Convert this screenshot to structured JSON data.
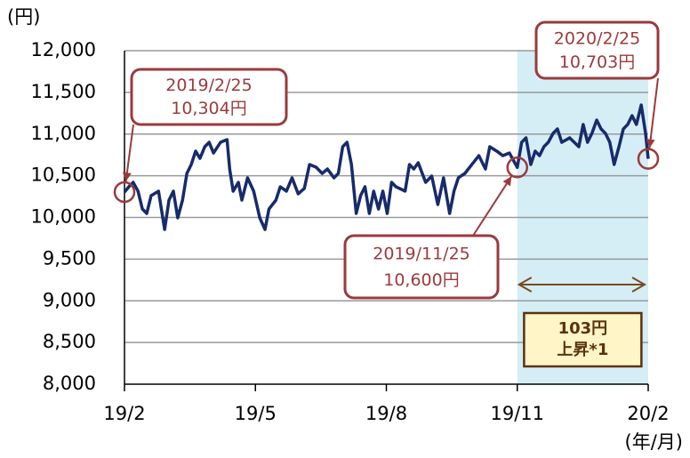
{
  "chart_data": {
    "type": "line",
    "y_unit": "(円)",
    "x_unit": "(年/月)",
    "xlim": [
      0,
      12
    ],
    "xticks": [
      {
        "value": 0,
        "label": "19/2"
      },
      {
        "value": 3,
        "label": "19/5"
      },
      {
        "value": 6,
        "label": "19/8"
      },
      {
        "value": 9,
        "label": "19/11"
      },
      {
        "value": 12,
        "label": "20/2"
      }
    ],
    "ylim": [
      8000,
      12000
    ],
    "yticks": [
      {
        "value": 8000,
        "label": "8,000"
      },
      {
        "value": 8500,
        "label": "8,500"
      },
      {
        "value": 9000,
        "label": "9,000"
      },
      {
        "value": 9500,
        "label": "9,500"
      },
      {
        "value": 10000,
        "label": "10,000"
      },
      {
        "value": 10500,
        "label": "10,500"
      },
      {
        "value": 11000,
        "label": "11,000"
      },
      {
        "value": 11500,
        "label": "11,500"
      },
      {
        "value": 12000,
        "label": "12,000"
      }
    ],
    "grid": true,
    "series": [
      {
        "color": "#172b6b",
        "x": [
          0,
          0.1,
          0.2,
          0.31,
          0.41,
          0.51,
          0.61,
          0.78,
          0.92,
          1.02,
          1.12,
          1.22,
          1.33,
          1.43,
          1.53,
          1.63,
          1.73,
          1.84,
          1.94,
          2.04,
          2.2,
          2.35,
          2.41,
          2.49,
          2.61,
          2.69,
          2.82,
          2.96,
          3.1,
          3.22,
          3.31,
          3.47,
          3.57,
          3.71,
          3.84,
          3.98,
          4.12,
          4.24,
          4.39,
          4.53,
          4.65,
          4.8,
          4.9,
          5,
          5.1,
          5.2,
          5.31,
          5.41,
          5.51,
          5.61,
          5.71,
          5.82,
          5.92,
          6.02,
          6.12,
          6.22,
          6.43,
          6.53,
          6.63,
          6.73,
          6.9,
          7.04,
          7.18,
          7.31,
          7.45,
          7.55,
          7.65,
          7.8,
          7.96,
          8.12,
          8.27,
          8.37,
          8.53,
          8.67,
          8.82,
          9,
          9.1,
          9.2,
          9.31,
          9.41,
          9.51,
          9.61,
          9.71,
          9.82,
          9.92,
          10.02,
          10.2,
          10.41,
          10.51,
          10.61,
          10.71,
          10.82,
          10.92,
          11.02,
          11.12,
          11.22,
          11.33,
          11.43,
          11.53,
          11.63,
          11.73,
          11.84,
          11.94,
          12
        ],
        "values": [
          10304,
          10368,
          10421,
          10315,
          10101,
          10048,
          10261,
          10315,
          9856,
          10208,
          10315,
          9995,
          10208,
          10528,
          10635,
          10795,
          10709,
          10848,
          10901,
          10773,
          10901,
          10933,
          10581,
          10315,
          10421,
          10208,
          10475,
          10315,
          9995,
          9856,
          10101,
          10208,
          10368,
          10315,
          10475,
          10283,
          10347,
          10635,
          10603,
          10528,
          10581,
          10475,
          10528,
          10848,
          10901,
          10635,
          10048,
          10261,
          10368,
          10048,
          10315,
          10101,
          10315,
          10048,
          10421,
          10368,
          10315,
          10635,
          10581,
          10656,
          10421,
          10496,
          10155,
          10475,
          10048,
          10315,
          10475,
          10528,
          10635,
          10741,
          10581,
          10848,
          10795,
          10741,
          10773,
          10600,
          10901,
          10955,
          10635,
          10795,
          10741,
          10848,
          10901,
          11008,
          11061,
          10901,
          10955,
          10848,
          11115,
          10901,
          11008,
          11168,
          11061,
          11008,
          10901,
          10635,
          10848,
          11061,
          11115,
          11221,
          11115,
          11349,
          11008,
          10703
        ]
      }
    ],
    "annotations": [
      {
        "lines": [
          "2019/2/25",
          "10,304円"
        ],
        "x": 0,
        "y": 10304
      },
      {
        "lines": [
          "2019/11/25",
          "10,600円"
        ],
        "x": 9,
        "y": 10600
      },
      {
        "lines": [
          "2020/2/25",
          "10,703円"
        ],
        "x": 12,
        "y": 10703
      }
    ],
    "highlight": {
      "xlim": [
        9,
        12
      ],
      "lines": [
        "103円",
        "上昇*1"
      ]
    }
  }
}
